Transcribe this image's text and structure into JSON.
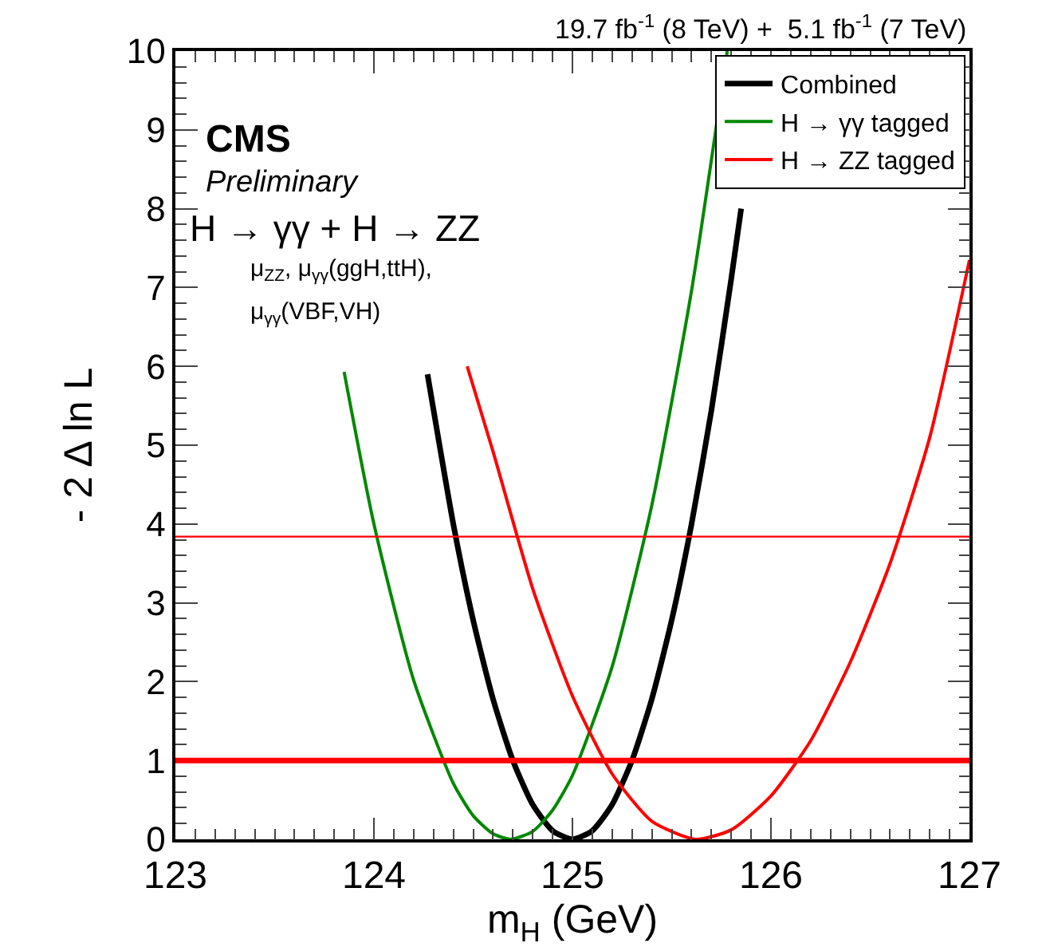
{
  "chart_data": {
    "type": "line",
    "xlabel": "m$_{H}$ (GeV)",
    "ylabel": "- 2 Δ ln L",
    "annotations": [
      "19.7 fb$^{-1}$ (8 TeV) +  5.1 fb$^{-1}$ (7 TeV)",
      "CMS",
      "Preliminary",
      "H → γγ + H → ZZ",
      "μ$_{ZZ}$, μ$_{γγ}$(ggH,ttH),",
      "μ$_{γγ}$(VBF,VH)"
    ],
    "series": [
      {
        "name": "Combined",
        "color": "#000000",
        "x": [
          124.27,
          124.4,
          124.5,
          124.6,
          124.7,
          124.8,
          124.9,
          125.0,
          125.1,
          125.2,
          125.3,
          125.4,
          125.5,
          125.6,
          125.7,
          125.8,
          125.85
        ],
        "values": [
          5.9,
          4.0,
          2.78,
          1.78,
          1.0,
          0.44,
          0.11,
          0,
          0.11,
          0.44,
          1.0,
          1.78,
          2.78,
          4.0,
          5.44,
          7.11,
          8.0
        ]
      },
      {
        "name": "H → γγ tagged",
        "color": "#008800",
        "x": [
          123.85,
          124.0,
          124.2,
          124.4,
          124.5,
          124.6,
          124.69,
          124.8,
          124.9,
          125.0,
          125.2,
          125.4,
          125.6,
          125.78
        ],
        "values": [
          5.93,
          4.0,
          2.02,
          0.71,
          0.3,
          0.07,
          0,
          0.1,
          0.37,
          0.81,
          2.19,
          4.24,
          6.96,
          10.0
        ]
      },
      {
        "name": "H → ZZ tagged",
        "color": "#ff0000",
        "x": [
          124.47,
          124.6,
          124.8,
          125.0,
          125.2,
          125.4,
          125.62,
          125.8,
          126.0,
          126.2,
          126.4,
          126.6,
          126.8,
          127.0
        ],
        "values": [
          6.0,
          4.92,
          3.18,
          1.82,
          0.83,
          0.23,
          0,
          0.12,
          0.55,
          1.25,
          2.25,
          3.5,
          5.1,
          7.35
        ]
      }
    ],
    "xlim": [
      123,
      127
    ],
    "xticks": [
      123,
      124,
      125,
      126,
      127
    ],
    "ylim": [
      0,
      10
    ],
    "yticks": [
      0,
      1,
      2,
      3,
      4,
      5,
      6,
      7,
      8,
      9,
      10
    ],
    "ref_lines": [
      {
        "axis": "y",
        "value": 3.84,
        "color": "#ff0000"
      },
      {
        "axis": "y",
        "value": 1,
        "color": "#ff0000"
      }
    ],
    "grid": false,
    "legend": "top right",
    "marker": "none",
    "line_style": "solid"
  }
}
